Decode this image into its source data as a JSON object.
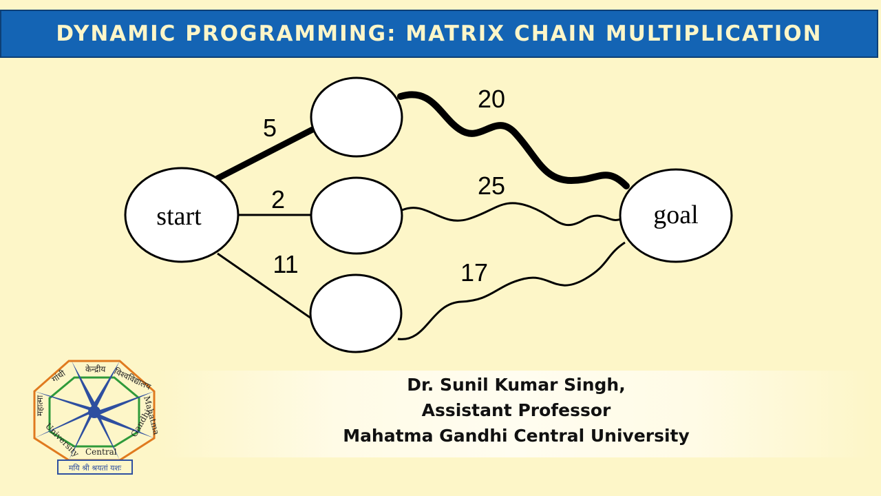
{
  "header": {
    "title": "DYNAMIC PROGRAMMING: MATRIX CHAIN MULTIPLICATION"
  },
  "diagram": {
    "nodes": {
      "start": "start",
      "goal": "goal"
    },
    "edges": {
      "start_top": "5",
      "start_mid": "2",
      "start_bottom": "11",
      "top_goal": "20",
      "mid_goal": "25",
      "bottom_goal": "17"
    }
  },
  "credits": {
    "name": "Dr. Sunil Kumar Singh,",
    "designation": "Assistant Professor",
    "institution": "Mahatma Gandhi Central University"
  },
  "logo": {
    "motto": "मयि श्री श्रयतां यशः",
    "ring_hindi_1": "केन्द्रीय",
    "ring_hindi_2": "विश्वविद्यालय",
    "ring_hindi_3": "गांधी",
    "ring_hindi_4": "महात्मा",
    "ring_en_1": "Mahatma",
    "ring_en_2": "Gandhi",
    "ring_en_3": "Central",
    "ring_en_4": "University"
  },
  "colors": {
    "header_bg": "#1464b4",
    "background": "#fdf6c8",
    "logo_star": "#2e4fa0"
  }
}
